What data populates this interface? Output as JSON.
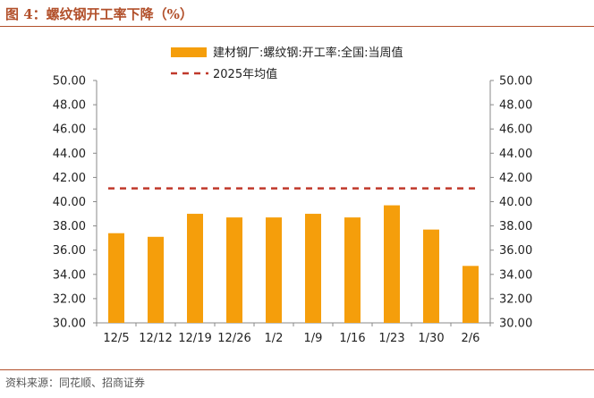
{
  "figure": {
    "title": "图 4：螺纹钢开工率下降（%）",
    "source": "资料来源：同花顺、招商证券"
  },
  "colors": {
    "title": "#b2502b",
    "bar": "#f59e0b",
    "avg_line": "#c0392b",
    "axis": "#888888",
    "text": "#222222"
  },
  "chart_data": {
    "type": "bar",
    "categories": [
      "12/5",
      "12/12",
      "12/19",
      "12/26",
      "1/2",
      "1/9",
      "1/16",
      "1/23",
      "1/30",
      "2/6"
    ],
    "series": [
      {
        "name": "建材钢厂:螺纹钢:开工率:全国:当周值",
        "type": "bar",
        "values": [
          37.4,
          37.1,
          39.0,
          38.7,
          38.7,
          39.0,
          38.7,
          39.7,
          37.7,
          34.7
        ]
      },
      {
        "name": "2025年均值",
        "type": "line",
        "style": "dashed",
        "value": 41.1
      }
    ],
    "ylim": [
      30,
      50
    ],
    "yticks": [
      "30.00",
      "32.00",
      "34.00",
      "36.00",
      "38.00",
      "40.00",
      "42.00",
      "44.00",
      "46.00",
      "48.00",
      "50.00"
    ],
    "right_axis": true,
    "legend_position": "top",
    "xlabel": "",
    "ylabel": ""
  }
}
